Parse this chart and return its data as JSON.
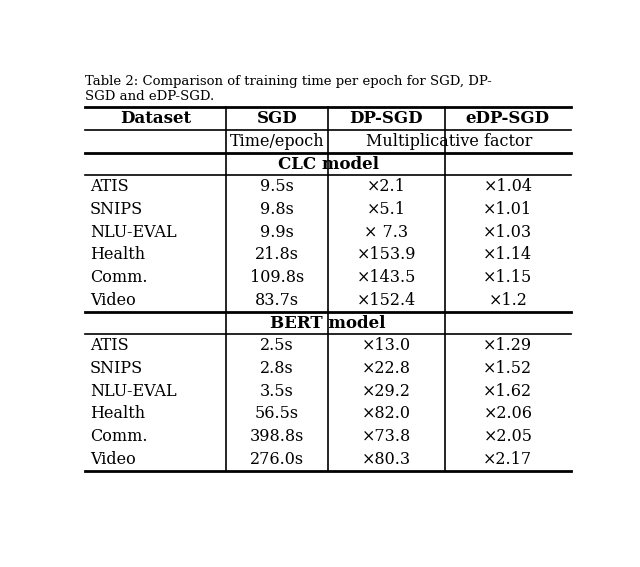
{
  "caption_line1": "Table 2: Comparison of training time per epoch for SGD, DP-",
  "caption_line2": "SGD and eDP-SGD.",
  "col_headers": [
    "Dataset",
    "SGD",
    "DP-SGD",
    "eDP-SGD"
  ],
  "sub_header_sgd": "Time/epoch",
  "sub_header_mult": "Multiplicative factor",
  "clc_section_label": "CLC model",
  "bert_section_label": "BERT model",
  "clc_rows": [
    [
      "ATIS",
      "9.5s",
      "×2.1",
      "×1.04"
    ],
    [
      "SNIPS",
      "9.8s",
      "×5.1",
      "×1.01"
    ],
    [
      "NLU-EVAL",
      "9.9s",
      "× 7.3",
      "×1.03"
    ],
    [
      "Health",
      "21.8s",
      "×153.9",
      "×1.14"
    ],
    [
      "Comm.",
      "109.8s",
      "×143.5",
      "×1.15"
    ],
    [
      "Video",
      "83.7s",
      "×152.4",
      "×1.2"
    ]
  ],
  "bert_rows": [
    [
      "ATIS",
      "2.5s",
      "×13.0",
      "×1.29"
    ],
    [
      "SNIPS",
      "2.8s",
      "×22.8",
      "×1.52"
    ],
    [
      "NLU-EVAL",
      "3.5s",
      "×29.2",
      "×1.62"
    ],
    [
      "Health",
      "56.5s",
      "×82.0",
      "×2.06"
    ],
    [
      "Comm.",
      "398.8s",
      "×73.8",
      "×2.05"
    ],
    [
      "Video",
      "276.0s",
      "×80.3",
      "×2.17"
    ]
  ],
  "bg_color": "#ffffff",
  "text_color": "#000000",
  "fig_width": 6.4,
  "fig_height": 5.67,
  "caption_fontsize": 9.5,
  "header_fontsize": 12,
  "data_fontsize": 11.5
}
